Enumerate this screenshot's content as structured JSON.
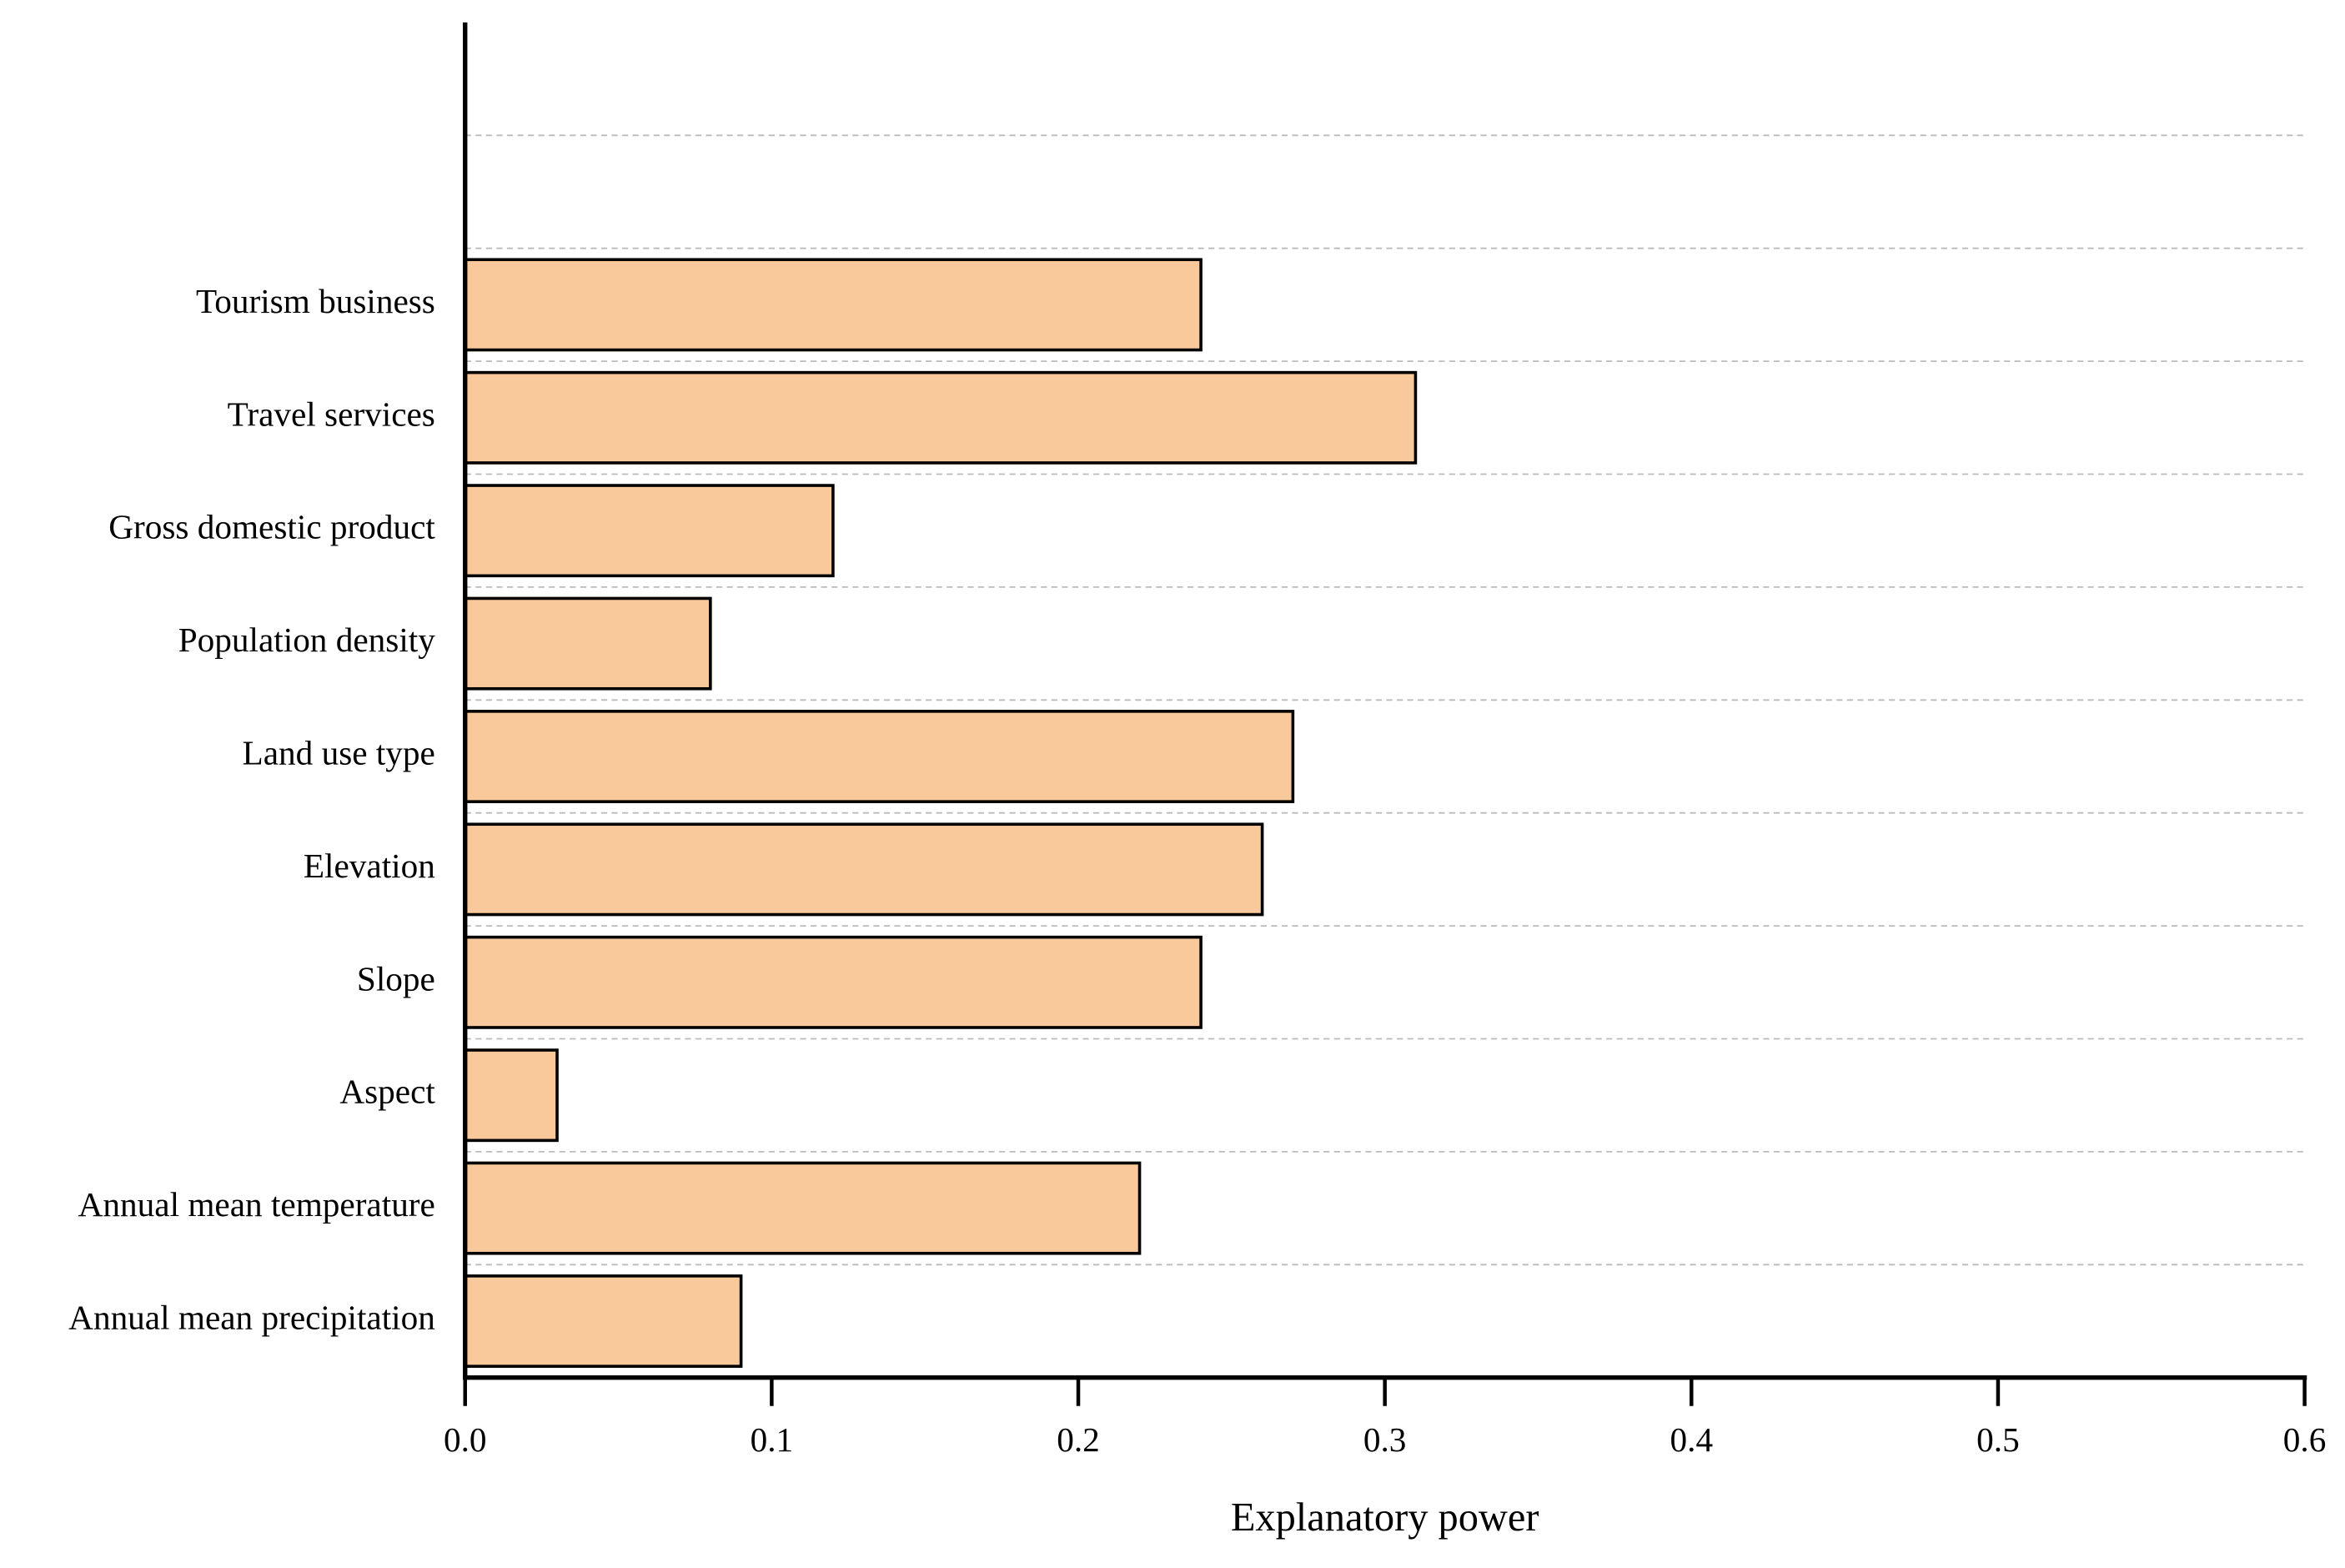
{
  "chart_data": {
    "type": "hbar",
    "x_label": "Explanatory power",
    "categories": [
      "Tourism business",
      "Travel services",
      "Gross domestic product",
      "Population density",
      "Land use type",
      "Elevation",
      "Slope",
      "Aspect",
      "Annual mean temperature",
      "Annual mean precipitation"
    ],
    "values": [
      0.24,
      0.31,
      0.12,
      0.08,
      0.27,
      0.26,
      0.24,
      0.03,
      0.22,
      0.09
    ],
    "color": "#f9c89b",
    "xlim": [
      0,
      0.6
    ],
    "xticks": [
      {
        "value": 0,
        "label": "0.0"
      },
      0.1,
      0.2,
      0.3,
      0.4,
      0.5,
      0.6
    ],
    "grid": true
  }
}
